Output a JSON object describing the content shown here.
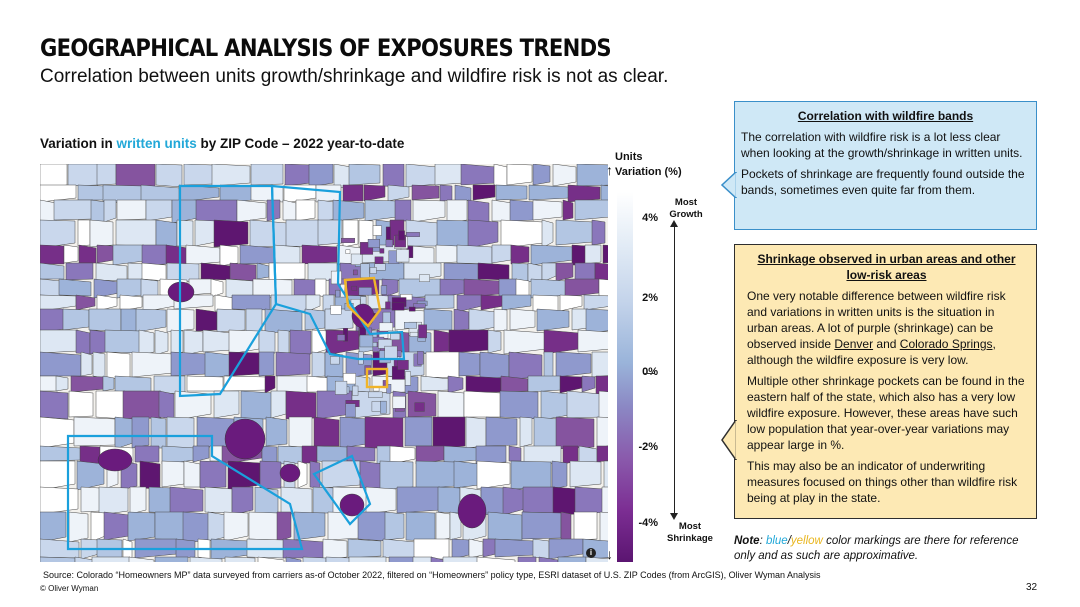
{
  "header": {
    "title": "GEOGRAPHICAL ANALYSIS OF EXPOSURES TRENDS",
    "subtitle": "Correlation between units growth/shrinkage and wildfire risk is not as clear."
  },
  "map": {
    "title_pre": "Variation in ",
    "title_highlight": "written units",
    "title_post": " by ZIP Code – 2022 year-to-date",
    "info_glyph": "i"
  },
  "legend": {
    "title_line1": "Units",
    "title_line2": "Variation (%)",
    "ticks": [
      "4%",
      "2%",
      "0%",
      "-2%",
      "-4%"
    ],
    "top_label": "Most Growth",
    "bottom_label": "Most Shrinkage",
    "colors": {
      "high": "#ffffff",
      "mid": "#9ab4da",
      "low": "#5b1571"
    }
  },
  "box_blue": {
    "heading": "Correlation with wildfire bands",
    "p1": "The correlation with wildfire risk is a lot less clear when looking at the growth/shrinkage in written units.",
    "p2": "Pockets of shrinkage are frequently found outside the bands, sometimes even quite far from them."
  },
  "box_yellow": {
    "heading": "Shrinkage observed in urban areas and other low-risk areas",
    "p1_a": "One very notable difference between wildfire risk and variations in written units is the situation in urban areas. A lot of purple (shrinkage) can be observed inside ",
    "p1_denver": "Denver",
    "p1_and": " and ",
    "p1_springs": "Colorado Springs",
    "p1_b": ", although the wildfire exposure is very low.",
    "p2": "Multiple other shrinkage pockets can be found in the eastern half of the state, which also has a very low wildfire exposure. However, these areas have such low population that year-over-year variations may appear large in %.",
    "p3": "This may also be an indicator of underwriting measures focused on things other than wildfire risk being at play in the state."
  },
  "note": {
    "label": "Note",
    "sep1": ": ",
    "blue": "blue",
    "slash": "/",
    "yellow": "yellow",
    "rest": " color markings are there for reference only and as such are approximative."
  },
  "footer": {
    "source": "Source: Colorado “Homeowners MP” data surveyed from carriers as-of October 2022, filtered on “Homeowners” policy type, ESRI dataset of U.S. ZIP Codes (from ArcGIS), Oliver Wyman Analysis",
    "copyright": "© Oliver Wyman",
    "page": "32"
  }
}
